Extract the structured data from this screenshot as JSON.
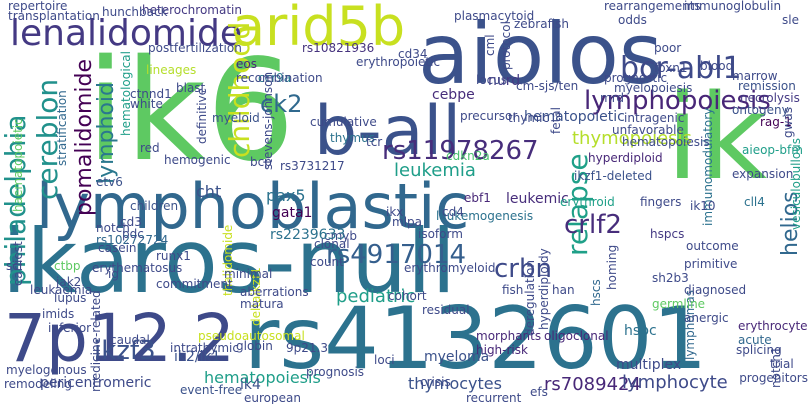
{
  "words": [
    {
      "text": "ikaros-null",
      "color": "#2c728e"
    },
    {
      "text": "ik6",
      "color": "#5ec962"
    },
    {
      "text": "aiolos",
      "color": "#3b528b"
    },
    {
      "text": "lymphoblastic",
      "color": "#31688e"
    },
    {
      "text": "rs4132601",
      "color": "#2c728e"
    },
    {
      "text": "7p12.2",
      "color": "#3e4a89"
    },
    {
      "text": "arid5b",
      "color": "#c8e020"
    },
    {
      "text": "b-all",
      "color": "#3b528b"
    },
    {
      "text": "ik",
      "color": "#5ec962"
    },
    {
      "text": "lenalidomide",
      "color": "#443983"
    },
    {
      "text": "bcr-abl1",
      "color": "#3e4a89"
    },
    {
      "text": "lymphopoiesis",
      "color": "#482677"
    },
    {
      "text": "philadelphia",
      "color": "#21918c"
    },
    {
      "text": "cereblon",
      "color": "#21918c"
    },
    {
      "text": "pomalidomide",
      "color": "#440154"
    },
    {
      "text": "rs11978267",
      "color": "#472d7b"
    },
    {
      "text": "relapse",
      "color": "#1fa088"
    },
    {
      "text": "rs4917014",
      "color": "#355f8d"
    },
    {
      "text": "crlf2",
      "color": "#472d7b"
    },
    {
      "text": "crbn",
      "color": "#3e4a89"
    },
    {
      "text": "childhood",
      "color": "#c8e020"
    },
    {
      "text": "lymphoid",
      "color": "#2a788e"
    },
    {
      "text": "ck2",
      "color": "#30698e"
    },
    {
      "text": "ikzf3",
      "color": "#3b528b"
    },
    {
      "text": "hematopoiesis",
      "color": "#1f9e89"
    },
    {
      "text": "pediatric",
      "color": "#1f9e89"
    },
    {
      "text": "thymocytes",
      "color": "#3b528b"
    },
    {
      "text": "rs7089424",
      "color": "#482878"
    },
    {
      "text": "lymphocyte",
      "color": "#3e4a89"
    },
    {
      "text": "helios",
      "color": "#31688e"
    },
    {
      "text": "hematopoietic",
      "color": "#3b528b"
    },
    {
      "text": "leukemia",
      "color": "#1f9e89"
    },
    {
      "text": "thymopoiesis",
      "color": "#b5de2b"
    },
    {
      "text": "cebpe",
      "color": "#472d7b"
    },
    {
      "text": "nurd",
      "color": "#443983"
    },
    {
      "text": "cm-sjs/ten",
      "color": "#3e4a89"
    },
    {
      "text": "mrd",
      "color": "#3e4a89"
    },
    {
      "text": "remission",
      "color": "#3b528b"
    },
    {
      "text": "necrolysis",
      "color": "#443983"
    },
    {
      "text": "ontogeny",
      "color": "#3b528b"
    },
    {
      "text": "rag-1",
      "color": "#440154"
    },
    {
      "text": "aieop-bfm",
      "color": "#1f9e89"
    },
    {
      "text": "vesiculobullous",
      "color": "#1f9e89"
    },
    {
      "text": "heterochromatin",
      "color": "#443983"
    },
    {
      "text": "hunchback",
      "color": "#3e4a89"
    },
    {
      "text": "rs10821936",
      "color": "#46337e"
    },
    {
      "text": "ccr9a",
      "color": "#2a788e"
    },
    {
      "text": "eos",
      "color": "#482878"
    },
    {
      "text": "myeloid",
      "color": "#3b528b"
    },
    {
      "text": "lineages",
      "color": "#b5de2b"
    },
    {
      "text": "hematological",
      "color": "#1f9e89"
    },
    {
      "text": "stratification",
      "color": "#31688e"
    },
    {
      "text": "cumulative",
      "color": "#3e4a89"
    },
    {
      "text": "thymus",
      "color": "#2c728e"
    },
    {
      "text": "thymic",
      "color": "#3e4a89"
    },
    {
      "text": "cdkn2a",
      "color": "#4ac16d"
    },
    {
      "text": "hyperdiploid",
      "color": "#482878"
    },
    {
      "text": "ikzf1-deleted",
      "color": "#3b528b"
    },
    {
      "text": "immunomodulatory",
      "color": "#2c728e"
    },
    {
      "text": "cll4",
      "color": "#2c728e"
    },
    {
      "text": "bcp",
      "color": "#3e4a89"
    },
    {
      "text": "rs3731217",
      "color": "#3e4a89"
    },
    {
      "text": "hemogenic",
      "color": "#3e4a89"
    },
    {
      "text": "etv6",
      "color": "#3b528b"
    },
    {
      "text": "children",
      "color": "#3b528b"
    },
    {
      "text": "cht",
      "color": "#3b528b"
    },
    {
      "text": "pax5",
      "color": "#2c728e"
    },
    {
      "text": "ebf1",
      "color": "#482878"
    },
    {
      "text": "leukemic",
      "color": "#472d7b"
    },
    {
      "text": "erythroid",
      "color": "#1fa088"
    },
    {
      "text": "fingers",
      "color": "#3e4a89"
    },
    {
      "text": "ik10",
      "color": "#3e4a89"
    },
    {
      "text": "gata1",
      "color": "#440154"
    },
    {
      "text": "leukemogenesis",
      "color": "#2c728e"
    },
    {
      "text": "hspcs",
      "color": "#443983"
    },
    {
      "text": "cmyb",
      "color": "#3e4a89"
    },
    {
      "text": "rs2239633",
      "color": "#2c728e"
    },
    {
      "text": "rs10272724",
      "color": "#31688e"
    },
    {
      "text": "ctbp",
      "color": "#5ec962"
    },
    {
      "text": "scl",
      "color": "#3e4a89"
    },
    {
      "text": "lupus",
      "color": "#3e4a89"
    },
    {
      "text": "imids",
      "color": "#3e4a89"
    },
    {
      "text": "hscs",
      "color": "#31688e"
    },
    {
      "text": "hspc",
      "color": "#2c728e"
    },
    {
      "text": "erythrocyte",
      "color": "#482878"
    },
    {
      "text": "acute",
      "color": "#31688e"
    },
    {
      "text": "multiplex",
      "color": "#3e4a89"
    },
    {
      "text": "myeloma",
      "color": "#3b528b"
    },
    {
      "text": "ik4",
      "color": "#3b528b"
    },
    {
      "text": "ik2/ik1",
      "color": "#3b528b"
    },
    {
      "text": "event-free",
      "color": "#3b528b"
    },
    {
      "text": "pericentromeric",
      "color": "#3e4a89"
    },
    {
      "text": "efs",
      "color": "#3e4a89"
    },
    {
      "text": "deltaikzf1",
      "color": "#c8e020"
    },
    {
      "text": "thalidomide",
      "color": "#c8e020"
    },
    {
      "text": "morphants",
      "color": "#482878"
    },
    {
      "text": "high-risk",
      "color": "#482878"
    },
    {
      "text": "oligoclonal",
      "color": "#482878"
    },
    {
      "text": "lymphomas",
      "color": "#31688e"
    },
    {
      "text": "progenitors",
      "color": "#3e4a89"
    },
    {
      "text": "splicing",
      "color": "#3e4a89"
    },
    {
      "text": "trial",
      "color": "#3e4a89"
    },
    {
      "text": "remodeling",
      "color": "#3e4a89"
    },
    {
      "text": "myelogenous",
      "color": "#3e4a89"
    },
    {
      "text": "caudal",
      "color": "#3e4a89"
    },
    {
      "text": "pseudoautosomal",
      "color": "#c8e020"
    },
    {
      "text": "9p21.3",
      "color": "#3e4a89"
    },
    {
      "text": "prognosis",
      "color": "#3e4a89"
    },
    {
      "text": "loci",
      "color": "#3e4a89"
    },
    {
      "text": "cohort",
      "color": "#3e4a89"
    },
    {
      "text": "residual",
      "color": "#3e4a89"
    },
    {
      "text": "globin",
      "color": "#3e4a89"
    },
    {
      "text": "intrathymic",
      "color": "#3e4a89"
    },
    {
      "text": "inferior",
      "color": "#3e4a89"
    },
    {
      "text": "fish",
      "color": "#3e4a89"
    },
    {
      "text": "han",
      "color": "#3e4a89"
    },
    {
      "text": "germline",
      "color": "#5ec962"
    },
    {
      "text": "anergic",
      "color": "#3e4a89"
    },
    {
      "text": "homing",
      "color": "#3e4a89"
    },
    {
      "text": "diagnosed",
      "color": "#3e4a89"
    },
    {
      "text": "sh2b3",
      "color": "#3e4a89"
    },
    {
      "text": "primitive",
      "color": "#3e4a89"
    },
    {
      "text": "outcome",
      "color": "#3e4a89"
    },
    {
      "text": "isoform",
      "color": "#3e4a89"
    },
    {
      "text": "erythromyeloid",
      "color": "#3e4a89"
    },
    {
      "text": "count",
      "color": "#3e4a89"
    },
    {
      "text": "clonal",
      "color": "#3e4a89"
    },
    {
      "text": "minimal",
      "color": "#3e4a89"
    },
    {
      "text": "runx1",
      "color": "#3e4a89"
    },
    {
      "text": "erythematosus",
      "color": "#3e4a89"
    },
    {
      "text": "commitment",
      "color": "#3e4a89"
    },
    {
      "text": "notch",
      "color": "#3e4a89"
    },
    {
      "text": "casein",
      "color": "#3e4a89"
    },
    {
      "text": "pdc",
      "color": "#3e4a89"
    },
    {
      "text": "cd3",
      "color": "#3e4a89"
    },
    {
      "text": "jak2",
      "color": "#3e4a89"
    },
    {
      "text": "leukaemia",
      "color": "#3e4a89"
    },
    {
      "text": "ig",
      "color": "#3e4a89"
    },
    {
      "text": "mlpa",
      "color": "#3e4a89"
    },
    {
      "text": "ikx",
      "color": "#3e4a89"
    },
    {
      "text": "cd4",
      "color": "#3e4a89"
    },
    {
      "text": "precursor",
      "color": "#3e4a89"
    },
    {
      "text": "tcr",
      "color": "#3e4a89"
    },
    {
      "text": "intragenic",
      "color": "#3e4a89"
    },
    {
      "text": "unfavorable",
      "color": "#3e4a89"
    },
    {
      "text": "hematopoiesis",
      "color": "#3e4a89"
    },
    {
      "text": "myelopoiesis",
      "color": "#3e4a89"
    },
    {
      "text": "prognostic",
      "color": "#3e4a89"
    },
    {
      "text": "recombination",
      "color": "#3e4a89"
    },
    {
      "text": "blast",
      "color": "#3e4a89"
    },
    {
      "text": "white",
      "color": "#3e4a89"
    },
    {
      "text": "ctnnd1",
      "color": "#3e4a89"
    },
    {
      "text": "postfertilization",
      "color": "#3e4a89"
    },
    {
      "text": "transplantation",
      "color": "#3e4a89"
    },
    {
      "text": "repertoire",
      "color": "#3e4a89"
    },
    {
      "text": "plasmacytoid",
      "color": "#3e4a89"
    },
    {
      "text": "zebrafish",
      "color": "#3e4a89"
    },
    {
      "text": "rearrangements",
      "color": "#3e4a89"
    },
    {
      "text": "immunoglobulin",
      "color": "#3e4a89"
    },
    {
      "text": "odds",
      "color": "#3e4a89"
    },
    {
      "text": "poor",
      "color": "#3e4a89"
    },
    {
      "text": "foxn1",
      "color": "#3e4a89"
    },
    {
      "text": "marrow",
      "color": "#3e4a89"
    },
    {
      "text": "blood",
      "color": "#3e4a89"
    },
    {
      "text": "sle",
      "color": "#3e4a89"
    },
    {
      "text": "cd34",
      "color": "#3e4a89"
    },
    {
      "text": "locus",
      "color": "#3e4a89"
    },
    {
      "text": "erythropoietic",
      "color": "#3e4a89"
    },
    {
      "text": "red",
      "color": "#3e4a89"
    },
    {
      "text": "definitive",
      "color": "#3e4a89"
    },
    {
      "text": "expansion",
      "color": "#3e4a89"
    },
    {
      "text": "earliest",
      "color": "#3e4a89"
    },
    {
      "text": "medicine-related",
      "color": "#3e4a89"
    },
    {
      "text": "european",
      "color": "#3e4a89"
    },
    {
      "text": "recurrent",
      "color": "#3e4a89"
    },
    {
      "text": "crisis",
      "color": "#3e4a89"
    },
    {
      "text": "deregulation",
      "color": "#3e4a89"
    },
    {
      "text": "hyperdiploidy",
      "color": "#3e4a89"
    },
    {
      "text": "aberrations",
      "color": "#3e4a89"
    },
    {
      "text": "matura",
      "color": "#3e4a89"
    },
    {
      "text": "cml",
      "color": "#3e4a89"
    },
    {
      "text": "protocol",
      "color": "#3e4a89"
    },
    {
      "text": "fetal",
      "color": "#3e4a89"
    },
    {
      "text": "gwas",
      "color": "#3e4a89"
    },
    {
      "text": "stevens-johnson",
      "color": "#3e4a89"
    },
    {
      "text": "notch1",
      "color": "#3e4a89"
    },
    {
      "text": "haematopoietic",
      "color": "#5ec962"
    }
  ]
}
